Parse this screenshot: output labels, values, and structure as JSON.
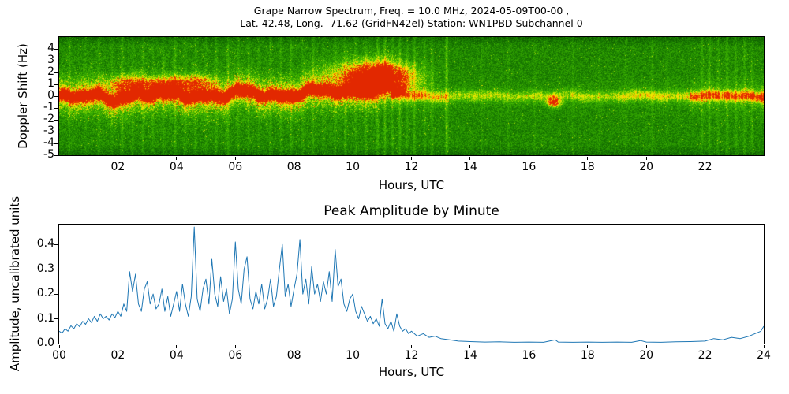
{
  "figure": {
    "background": "#ffffff"
  },
  "chart_data": [
    {
      "type": "heatmap",
      "name": "grape-narrow-spectrum-spectrogram",
      "title_line1": "Grape Narrow Spectrum, Freq. = 10.0 MHz, 2024-05-09T00-00 ,",
      "title_line2": "Lat.  42.48, Long. -71.62 (GridFN42el) Station: WN1PBD Subchannel 0",
      "xlabel": "Hours, UTC",
      "ylabel": "Doppler Shift (Hz)",
      "xlim": [
        0,
        24
      ],
      "ylim": [
        -5,
        5
      ],
      "xticks": [
        {
          "v": 2,
          "label": "02"
        },
        {
          "v": 4,
          "label": "04"
        },
        {
          "v": 6,
          "label": "06"
        },
        {
          "v": 8,
          "label": "08"
        },
        {
          "v": 10,
          "label": "10"
        },
        {
          "v": 12,
          "label": "12"
        },
        {
          "v": 14,
          "label": "14"
        },
        {
          "v": 16,
          "label": "16"
        },
        {
          "v": 18,
          "label": "18"
        },
        {
          "v": 20,
          "label": "20"
        },
        {
          "v": 22,
          "label": "22"
        }
      ],
      "yticks": [
        {
          "v": 4,
          "label": "4"
        },
        {
          "v": 3,
          "label": "3"
        },
        {
          "v": 2,
          "label": "2"
        },
        {
          "v": 1,
          "label": "1"
        },
        {
          "v": 0,
          "label": "0"
        },
        {
          "v": -1,
          "label": "-1"
        },
        {
          "v": -2,
          "label": "-2"
        },
        {
          "v": -3,
          "label": "-3"
        },
        {
          "v": -4,
          "label": "-4"
        },
        {
          "v": -5,
          "label": "-5"
        }
      ],
      "colormap_stops": [
        {
          "v": 0.0,
          "color": [
            6,
            58,
            0
          ]
        },
        {
          "v": 0.3,
          "color": [
            26,
            128,
            0
          ]
        },
        {
          "v": 0.55,
          "color": [
            70,
            190,
            0
          ]
        },
        {
          "v": 0.72,
          "color": [
            210,
            232,
            0
          ]
        },
        {
          "v": 0.82,
          "color": [
            255,
            230,
            0
          ]
        },
        {
          "v": 0.92,
          "color": [
            255,
            130,
            0
          ]
        },
        {
          "v": 1.0,
          "color": [
            226,
            40,
            0
          ]
        }
      ],
      "background_level": 0.33,
      "noise_amplitude": 0.13,
      "trace_description": "Strong red Doppler trace near 0 Hz from 00:00 UTC to ~11.3 UTC with yellow halo, rising to ~+1 Hz around 10:00-11:15, fading to a faint thin line at 0 Hz from 12:00 to 21:30, then brightening to yellow dashes at 0 Hz from 21:30 to 24:00",
      "trace_segments": [
        [
          0.0,
          1.0,
          -0.15,
          1.0
        ],
        [
          1.0,
          2.0,
          -0.05,
          1.0
        ],
        [
          2.0,
          3.0,
          0.05,
          1.0
        ],
        [
          3.0,
          4.0,
          0.0,
          1.0
        ],
        [
          4.0,
          5.0,
          0.15,
          1.0
        ],
        [
          5.0,
          6.0,
          0.05,
          1.0
        ],
        [
          6.0,
          7.0,
          0.2,
          1.0
        ],
        [
          7.0,
          8.0,
          0.15,
          1.0
        ],
        [
          8.0,
          9.0,
          0.25,
          1.0
        ],
        [
          9.0,
          10.0,
          0.35,
          1.0
        ],
        [
          10.0,
          10.8,
          0.7,
          1.0
        ],
        [
          10.8,
          11.3,
          1.0,
          1.0
        ],
        [
          11.3,
          11.8,
          0.3,
          0.6
        ],
        [
          11.8,
          13.2,
          0.0,
          0.42
        ],
        [
          13.2,
          19.0,
          0.0,
          0.3
        ],
        [
          19.0,
          21.5,
          0.0,
          0.36
        ],
        [
          21.5,
          23.9,
          0.0,
          0.55
        ],
        [
          23.9,
          24.01,
          0.0,
          0.75
        ]
      ],
      "blobs": [
        [
          2.35,
          1.0,
          0.5,
          0.5,
          0.55
        ],
        [
          3.5,
          0.9,
          0.45,
          0.4,
          0.5
        ],
        [
          4.55,
          1.1,
          0.5,
          0.45,
          0.55
        ],
        [
          10.6,
          1.8,
          0.9,
          0.8,
          0.6
        ],
        [
          11.05,
          1.3,
          0.7,
          0.9,
          0.7
        ],
        [
          16.85,
          -0.5,
          0.15,
          0.3,
          0.85
        ]
      ],
      "stripes": [
        [
          0.35,
          0.08
        ],
        [
          0.9,
          0.06
        ],
        [
          1.35,
          0.1
        ],
        [
          1.8,
          0.07
        ],
        [
          2.15,
          0.12
        ],
        [
          2.5,
          0.08
        ],
        [
          2.85,
          0.1
        ],
        [
          3.2,
          0.07
        ],
        [
          3.55,
          0.09
        ],
        [
          3.95,
          0.12
        ],
        [
          4.3,
          0.08
        ],
        [
          4.65,
          0.1
        ],
        [
          5.0,
          0.07
        ],
        [
          5.35,
          0.09
        ],
        [
          5.75,
          0.12
        ],
        [
          6.1,
          0.08
        ],
        [
          6.45,
          0.1
        ],
        [
          6.8,
          0.07
        ],
        [
          7.2,
          0.09
        ],
        [
          7.55,
          0.08
        ],
        [
          7.9,
          0.11
        ],
        [
          8.3,
          0.08
        ],
        [
          8.65,
          0.1
        ],
        [
          9.0,
          0.07
        ],
        [
          9.4,
          0.09
        ],
        [
          9.75,
          0.12
        ],
        [
          10.1,
          0.09
        ],
        [
          10.45,
          0.1
        ],
        [
          10.85,
          0.14
        ],
        [
          11.1,
          0.16
        ],
        [
          11.35,
          0.12
        ],
        [
          11.6,
          0.14
        ],
        [
          11.85,
          0.1
        ],
        [
          12.1,
          0.13
        ],
        [
          12.45,
          0.09
        ],
        [
          12.7,
          0.11
        ],
        [
          13.2,
          0.22
        ],
        [
          14.4,
          0.05
        ],
        [
          15.3,
          0.06
        ],
        [
          16.2,
          0.05
        ],
        [
          17.5,
          0.06
        ],
        [
          18.4,
          0.05
        ],
        [
          19.3,
          0.06
        ],
        [
          20.2,
          0.07
        ],
        [
          20.7,
          0.05
        ],
        [
          21.9,
          0.1
        ],
        [
          22.15,
          0.12
        ],
        [
          22.45,
          0.09
        ],
        [
          22.75,
          0.12
        ],
        [
          23.05,
          0.1
        ],
        [
          23.35,
          0.11
        ],
        [
          23.6,
          0.09
        ]
      ]
    },
    {
      "type": "line",
      "name": "peak-amplitude-by-minute",
      "title": "Peak Amplitude by Minute",
      "xlabel": "Hours, UTC",
      "ylabel": "Amplitude, uncalibrated units",
      "xlim": [
        0,
        24
      ],
      "ylim": [
        0,
        0.48
      ],
      "line_color": "#1f77b4",
      "xticks": [
        {
          "v": 0,
          "label": "00"
        },
        {
          "v": 2,
          "label": "02"
        },
        {
          "v": 4,
          "label": "04"
        },
        {
          "v": 6,
          "label": "06"
        },
        {
          "v": 8,
          "label": "08"
        },
        {
          "v": 10,
          "label": "10"
        },
        {
          "v": 12,
          "label": "12"
        },
        {
          "v": 14,
          "label": "14"
        },
        {
          "v": 16,
          "label": "16"
        },
        {
          "v": 18,
          "label": "18"
        },
        {
          "v": 20,
          "label": "20"
        },
        {
          "v": 22,
          "label": "22"
        },
        {
          "v": 24,
          "label": "24"
        }
      ],
      "yticks": [
        {
          "v": 0.0,
          "label": "0.0"
        },
        {
          "v": 0.1,
          "label": "0.1"
        },
        {
          "v": 0.2,
          "label": "0.2"
        },
        {
          "v": 0.3,
          "label": "0.3"
        },
        {
          "v": 0.4,
          "label": "0.4"
        }
      ],
      "points": [
        [
          0.0,
          0.05
        ],
        [
          0.1,
          0.042
        ],
        [
          0.2,
          0.06
        ],
        [
          0.3,
          0.05
        ],
        [
          0.4,
          0.072
        ],
        [
          0.5,
          0.06
        ],
        [
          0.6,
          0.08
        ],
        [
          0.7,
          0.068
        ],
        [
          0.8,
          0.09
        ],
        [
          0.9,
          0.078
        ],
        [
          1.0,
          0.1
        ],
        [
          1.1,
          0.085
        ],
        [
          1.2,
          0.11
        ],
        [
          1.3,
          0.09
        ],
        [
          1.4,
          0.12
        ],
        [
          1.5,
          0.1
        ],
        [
          1.6,
          0.11
        ],
        [
          1.7,
          0.095
        ],
        [
          1.8,
          0.12
        ],
        [
          1.9,
          0.105
        ],
        [
          2.0,
          0.13
        ],
        [
          2.1,
          0.11
        ],
        [
          2.2,
          0.16
        ],
        [
          2.3,
          0.13
        ],
        [
          2.4,
          0.29
        ],
        [
          2.5,
          0.21
        ],
        [
          2.6,
          0.28
        ],
        [
          2.7,
          0.16
        ],
        [
          2.8,
          0.13
        ],
        [
          2.9,
          0.22
        ],
        [
          3.0,
          0.25
        ],
        [
          3.1,
          0.16
        ],
        [
          3.2,
          0.2
        ],
        [
          3.3,
          0.14
        ],
        [
          3.4,
          0.16
        ],
        [
          3.5,
          0.22
        ],
        [
          3.6,
          0.13
        ],
        [
          3.7,
          0.19
        ],
        [
          3.8,
          0.11
        ],
        [
          3.9,
          0.16
        ],
        [
          4.0,
          0.21
        ],
        [
          4.1,
          0.13
        ],
        [
          4.2,
          0.24
        ],
        [
          4.3,
          0.16
        ],
        [
          4.4,
          0.11
        ],
        [
          4.5,
          0.19
        ],
        [
          4.6,
          0.47
        ],
        [
          4.7,
          0.18
        ],
        [
          4.8,
          0.13
        ],
        [
          4.9,
          0.22
        ],
        [
          5.0,
          0.26
        ],
        [
          5.1,
          0.16
        ],
        [
          5.2,
          0.34
        ],
        [
          5.3,
          0.2
        ],
        [
          5.4,
          0.15
        ],
        [
          5.5,
          0.27
        ],
        [
          5.6,
          0.17
        ],
        [
          5.7,
          0.22
        ],
        [
          5.8,
          0.12
        ],
        [
          5.9,
          0.18
        ],
        [
          6.0,
          0.41
        ],
        [
          6.1,
          0.22
        ],
        [
          6.2,
          0.16
        ],
        [
          6.3,
          0.3
        ],
        [
          6.4,
          0.35
        ],
        [
          6.5,
          0.18
        ],
        [
          6.6,
          0.14
        ],
        [
          6.7,
          0.21
        ],
        [
          6.8,
          0.16
        ],
        [
          6.9,
          0.24
        ],
        [
          7.0,
          0.14
        ],
        [
          7.1,
          0.18
        ],
        [
          7.2,
          0.26
        ],
        [
          7.3,
          0.15
        ],
        [
          7.4,
          0.19
        ],
        [
          7.5,
          0.3
        ],
        [
          7.6,
          0.4
        ],
        [
          7.7,
          0.19
        ],
        [
          7.8,
          0.24
        ],
        [
          7.9,
          0.15
        ],
        [
          8.0,
          0.22
        ],
        [
          8.1,
          0.28
        ],
        [
          8.2,
          0.42
        ],
        [
          8.3,
          0.2
        ],
        [
          8.4,
          0.26
        ],
        [
          8.5,
          0.16
        ],
        [
          8.6,
          0.31
        ],
        [
          8.7,
          0.2
        ],
        [
          8.8,
          0.24
        ],
        [
          8.9,
          0.17
        ],
        [
          9.0,
          0.25
        ],
        [
          9.1,
          0.2
        ],
        [
          9.2,
          0.29
        ],
        [
          9.3,
          0.17
        ],
        [
          9.4,
          0.38
        ],
        [
          9.5,
          0.23
        ],
        [
          9.6,
          0.26
        ],
        [
          9.7,
          0.16
        ],
        [
          9.8,
          0.13
        ],
        [
          9.9,
          0.18
        ],
        [
          10.0,
          0.2
        ],
        [
          10.1,
          0.13
        ],
        [
          10.2,
          0.1
        ],
        [
          10.3,
          0.15
        ],
        [
          10.4,
          0.12
        ],
        [
          10.5,
          0.09
        ],
        [
          10.6,
          0.11
        ],
        [
          10.7,
          0.08
        ],
        [
          10.8,
          0.1
        ],
        [
          10.9,
          0.07
        ],
        [
          11.0,
          0.18
        ],
        [
          11.1,
          0.08
        ],
        [
          11.2,
          0.06
        ],
        [
          11.3,
          0.09
        ],
        [
          11.4,
          0.05
        ],
        [
          11.5,
          0.12
        ],
        [
          11.6,
          0.07
        ],
        [
          11.7,
          0.05
        ],
        [
          11.8,
          0.06
        ],
        [
          11.9,
          0.04
        ],
        [
          12.0,
          0.05
        ],
        [
          12.2,
          0.03
        ],
        [
          12.4,
          0.04
        ],
        [
          12.6,
          0.025
        ],
        [
          12.8,
          0.03
        ],
        [
          13.0,
          0.02
        ],
        [
          13.3,
          0.015
        ],
        [
          13.6,
          0.01
        ],
        [
          14.0,
          0.008
        ],
        [
          14.5,
          0.006
        ],
        [
          15.0,
          0.007
        ],
        [
          15.5,
          0.005
        ],
        [
          16.0,
          0.006
        ],
        [
          16.5,
          0.005
        ],
        [
          16.9,
          0.015
        ],
        [
          17.0,
          0.006
        ],
        [
          17.5,
          0.005
        ],
        [
          18.0,
          0.006
        ],
        [
          18.5,
          0.005
        ],
        [
          19.0,
          0.006
        ],
        [
          19.5,
          0.005
        ],
        [
          19.8,
          0.012
        ],
        [
          20.0,
          0.006
        ],
        [
          20.5,
          0.005
        ],
        [
          21.0,
          0.007
        ],
        [
          21.5,
          0.008
        ],
        [
          22.0,
          0.01
        ],
        [
          22.3,
          0.02
        ],
        [
          22.6,
          0.015
        ],
        [
          22.9,
          0.025
        ],
        [
          23.2,
          0.02
        ],
        [
          23.5,
          0.03
        ],
        [
          23.7,
          0.04
        ],
        [
          23.9,
          0.05
        ],
        [
          24.0,
          0.07
        ]
      ]
    }
  ]
}
